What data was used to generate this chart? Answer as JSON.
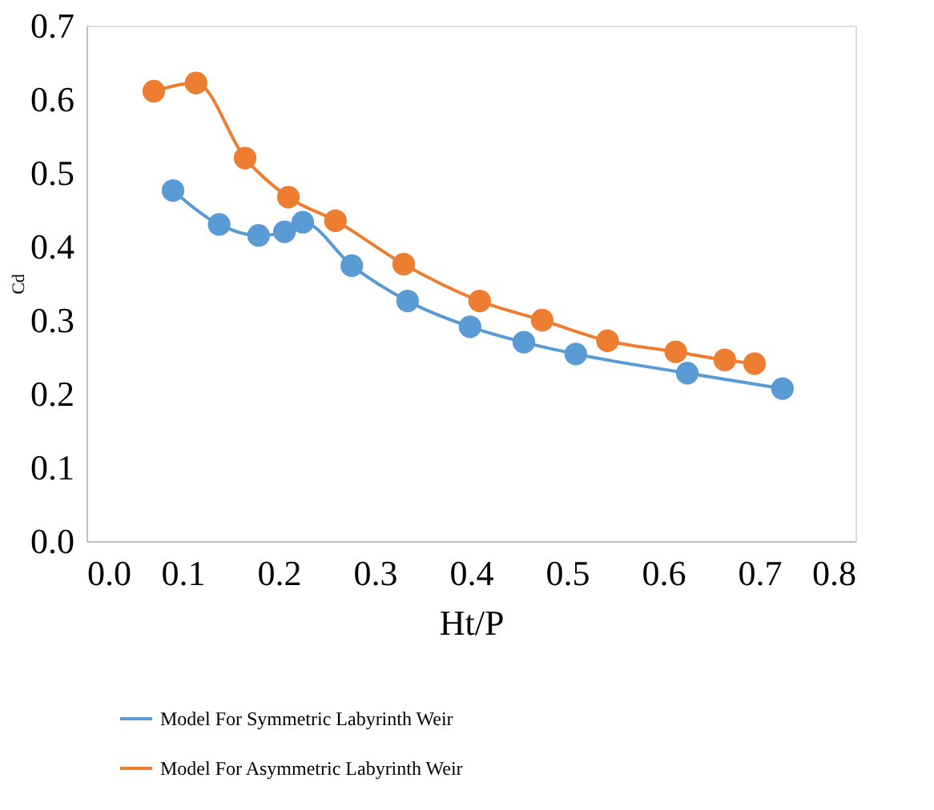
{
  "chart_data": {
    "type": "line",
    "xlabel": "Ht/P",
    "ylabel": "Cd",
    "xlim": [
      0,
      0.8
    ],
    "ylim": [
      0,
      0.7
    ],
    "xticks": [
      {
        "value": 0,
        "label": "0.0"
      },
      0.1,
      0.2,
      0.3,
      0.4,
      0.5,
      0.6,
      0.7,
      0.8
    ],
    "yticks": [
      {
        "value": 0,
        "label": "0.0"
      },
      0.1,
      0.2,
      0.3,
      0.4,
      0.5,
      0.6,
      0.7
    ],
    "grid": false,
    "legend": "bottom",
    "marker": "circle",
    "line_style": "solid",
    "series": [
      {
        "name": "Model For Symmetric Labyrinth Weir",
        "color": "#5b9bd5",
        "x": [
          0.09,
          0.138,
          0.179,
          0.206,
          0.225,
          0.276,
          0.334,
          0.399,
          0.455,
          0.509,
          0.625,
          0.724
        ],
        "values": [
          0.476,
          0.43,
          0.415,
          0.42,
          0.433,
          0.374,
          0.326,
          0.291,
          0.27,
          0.254,
          0.228,
          0.207
        ]
      },
      {
        "name": "Model For Asymmetric Labyrinth Weir",
        "color": "#ed7d31",
        "x": [
          0.07,
          0.114,
          0.165,
          0.21,
          0.259,
          0.33,
          0.409,
          0.474,
          0.542,
          0.613,
          0.664,
          0.695
        ],
        "values": [
          0.611,
          0.622,
          0.52,
          0.467,
          0.435,
          0.376,
          0.326,
          0.3,
          0.272,
          0.257,
          0.246,
          0.241
        ]
      }
    ]
  }
}
